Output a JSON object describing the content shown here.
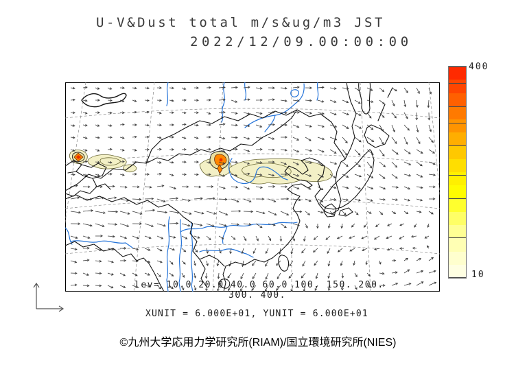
{
  "title": {
    "line1": "U-V&Dust total m/s&ug/m3 JST",
    "line2": "2022/12/09.00:00:00"
  },
  "colorbar": {
    "max_label": "400",
    "min_label": "10",
    "colors": [
      "#FF2A00",
      "#FF4600",
      "#FF6000",
      "#FF7A00",
      "#FF9400",
      "#FFAE00",
      "#FFC800",
      "#FFDE00",
      "#FFF000",
      "#FFFC00",
      "#FFFF2E",
      "#FFFF66",
      "#FFFF94",
      "#FFFFB4",
      "#FFFFCE",
      "#FFFFE2"
    ],
    "tick_levels": [
      400,
      300,
      200,
      150,
      100,
      60,
      40,
      20,
      10
    ]
  },
  "legend": {
    "lev_line1": "lev= 10.0 20.0 40.0 60.0 100. 150. 200.",
    "lev_line2": "300. 400.",
    "unit_line": "XUNIT = 6.000E+01, YUNIT = 6.000E+01"
  },
  "footer": {
    "copyright": "©九州大学応用力学研究所(RIAM)/国立環境研究所(NIES)"
  },
  "wind_field": {
    "grid_step": 18,
    "arrow_color": "#3a3a3a"
  },
  "map_colors": {
    "coast": "#141414",
    "river": "#2574D9",
    "graticule": "#8a8a8a",
    "dust_fill": "#F3F0C6",
    "dust_outline": "#6b6836",
    "hotspot_orange": "#FF8600",
    "hotspot_red": "#E83000"
  },
  "chart_data": {
    "type": "map",
    "product": "Surface wind vectors (U-V) and total dust concentration over East Asia",
    "title": "U-V&Dust total m/s&ug/m3 JST",
    "valid_time": "2022/12/09.00:00:00",
    "timezone": "JST",
    "wind_unit": "m/s",
    "dust_unit": "ug/m3",
    "contour_levels": [
      10.0,
      20.0,
      40.0,
      60.0,
      100,
      150,
      200,
      300,
      400
    ],
    "colorbar_range": [
      10,
      400
    ],
    "colorbar_scale": "logarithmic",
    "xunit": "6.000E+01",
    "yunit": "6.000E+01",
    "region": "East Asia (China, Mongolia, Korea, Japan, Southeast Asia)",
    "dust_features": [
      {
        "name": "hotspot-west (Tarim basin area)",
        "map_fraction_x": 0.04,
        "map_fraction_y": 0.36,
        "peak_over": 400
      },
      {
        "name": "plume-west",
        "map_fraction_x": 0.11,
        "map_fraction_y": 0.38,
        "level": "10-20"
      },
      {
        "name": "hotspot-central (Gobi area)",
        "map_fraction_x": 0.41,
        "map_fraction_y": 0.38,
        "peak_over": 400
      },
      {
        "name": "plume-east (Bohai to Korea)",
        "map_fraction_x": 0.58,
        "map_fraction_y": 0.42,
        "level": "10-40"
      }
    ],
    "legend_position": "right",
    "grid": "dashed lat/lon graticule"
  }
}
